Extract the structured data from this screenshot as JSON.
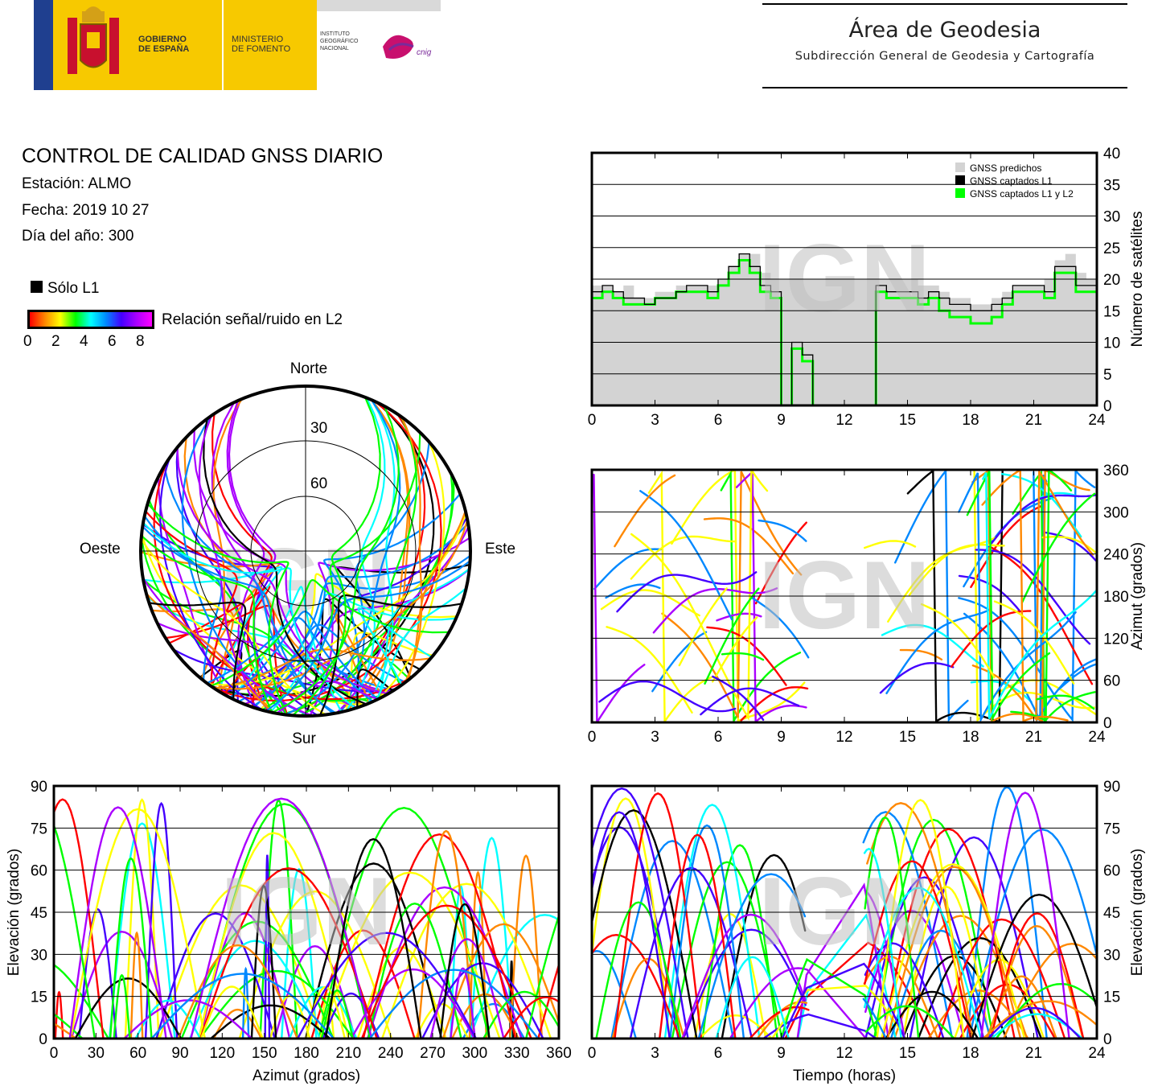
{
  "header": {
    "gov1": "GOBIERNO",
    "gov2": "DE ESPAÑA",
    "min1": "MINISTERIO",
    "min2": "DE FOMENTO",
    "ign1": "INSTITUTO",
    "ign2": "GEOGRÁFICO",
    "ign3": "NACIONAL",
    "cnig": "cnig",
    "area_title": "Área de Geodesia",
    "area_subtitle": "Subdirección General de Geodesia y Cartografía"
  },
  "info": {
    "title": "CONTROL DE CALIDAD GNSS DIARIO",
    "station": "Estación: ALMO",
    "date": "Fecha: 2019 10 27",
    "doy": "Día del año: 300"
  },
  "legend": {
    "l1_only": "Sólo L1",
    "snr_label": "Relación señal/ruido en L2",
    "snr_ticks": [
      "0",
      "2",
      "4",
      "6",
      "8"
    ],
    "snr_colors": [
      "#ff0000",
      "#ff8800",
      "#ffff00",
      "#00ff00",
      "#00ffff",
      "#0088ff",
      "#4400ff",
      "#aa00ff",
      "#ff00ff"
    ]
  },
  "watermark": "IGN",
  "chart_data": [
    {
      "type": "line",
      "id": "satellite-count",
      "xlim": [
        0,
        24
      ],
      "ylim": [
        0,
        40
      ],
      "xticks": [
        "0",
        "3",
        "6",
        "9",
        "12",
        "15",
        "18",
        "21",
        "24"
      ],
      "yticks": [
        "0",
        "5",
        "10",
        "15",
        "20",
        "25",
        "30",
        "35",
        "40"
      ],
      "ylabel": "Número de satélites",
      "grid": true,
      "legend_position": "top-right",
      "x": [
        0,
        0.5,
        1,
        1.5,
        2,
        2.5,
        3,
        3.5,
        4,
        4.5,
        5,
        5.5,
        6,
        6.5,
        7,
        7.5,
        8,
        8.5,
        9,
        9.5,
        10,
        10.5,
        11,
        11.5,
        12,
        12.5,
        13,
        13.5,
        14,
        14.5,
        15,
        15.5,
        16,
        16.5,
        17,
        17.5,
        18,
        18.5,
        19,
        19.5,
        20,
        20.5,
        21,
        21.5,
        22,
        22.5,
        23,
        23.5,
        24
      ],
      "series": [
        {
          "name": "GNSS predichos",
          "color": "#d3d3d3",
          "values": [
            19,
            19,
            18,
            19,
            17,
            17,
            18,
            18,
            19,
            19,
            19,
            19,
            20,
            22,
            24,
            24,
            21,
            20,
            20,
            20,
            20,
            20,
            20,
            20,
            20,
            20,
            20,
            20,
            20,
            20,
            20,
            19,
            19,
            18,
            17,
            17,
            16,
            16,
            17,
            18,
            19,
            19,
            19,
            20,
            23,
            24,
            21,
            20,
            20
          ]
        },
        {
          "name": "GNSS captados L1",
          "color": "#000000",
          "values": [
            18,
            19,
            18,
            17,
            17,
            16,
            17,
            17,
            18,
            19,
            19,
            18,
            20,
            22,
            24,
            22,
            19,
            18,
            0,
            10,
            8,
            0,
            0,
            0,
            0,
            0,
            0,
            19,
            18,
            18,
            18,
            17,
            18,
            17,
            16,
            16,
            15,
            15,
            16,
            17,
            19,
            19,
            19,
            18,
            22,
            22,
            19,
            19,
            19
          ]
        },
        {
          "name": "GNSS captados L1 y L2",
          "color": "#00ff00",
          "values": [
            17,
            18,
            17,
            16,
            16,
            16,
            17,
            17,
            18,
            18,
            18,
            17,
            19,
            21,
            23,
            21,
            18,
            17,
            0,
            9,
            7,
            0,
            0,
            0,
            0,
            0,
            0,
            18,
            17,
            17,
            17,
            16,
            17,
            15,
            14,
            14,
            13,
            13,
            14,
            16,
            18,
            18,
            18,
            17,
            21,
            21,
            18,
            18,
            18
          ]
        }
      ]
    },
    {
      "type": "scatter",
      "id": "skyplot",
      "labels": {
        "north": "Norte",
        "south": "Sur",
        "east": "Este",
        "west": "Oeste",
        "ring30": "30",
        "ring60": "60"
      }
    },
    {
      "type": "scatter",
      "id": "azimuth-vs-time",
      "xlim": [
        0,
        24
      ],
      "ylim": [
        0,
        360
      ],
      "xticks": [
        "0",
        "3",
        "6",
        "9",
        "12",
        "15",
        "18",
        "21",
        "24"
      ],
      "yticks": [
        "0",
        "60",
        "120",
        "180",
        "240",
        "300",
        "360"
      ],
      "ylabel": "Azimut (grados)",
      "grid": true
    },
    {
      "type": "scatter",
      "id": "elevation-vs-azimuth",
      "xlim": [
        0,
        360
      ],
      "ylim": [
        0,
        90
      ],
      "xticks": [
        "0",
        "30",
        "60",
        "90",
        "120",
        "150",
        "180",
        "210",
        "240",
        "270",
        "300",
        "330",
        "360"
      ],
      "yticks": [
        "0",
        "15",
        "30",
        "45",
        "60",
        "75",
        "90"
      ],
      "xlabel": "Azimut (grados)",
      "ylabel": "Elevación (grados)",
      "grid": true
    },
    {
      "type": "scatter",
      "id": "elevation-vs-time",
      "xlim": [
        0,
        24
      ],
      "ylim": [
        0,
        90
      ],
      "xticks": [
        "0",
        "3",
        "6",
        "9",
        "12",
        "15",
        "18",
        "21",
        "24"
      ],
      "yticks": [
        "0",
        "15",
        "30",
        "45",
        "60",
        "75",
        "90"
      ],
      "xlabel": "Tiempo (horas)",
      "ylabel": "Elevación (grados)",
      "grid": true
    }
  ]
}
